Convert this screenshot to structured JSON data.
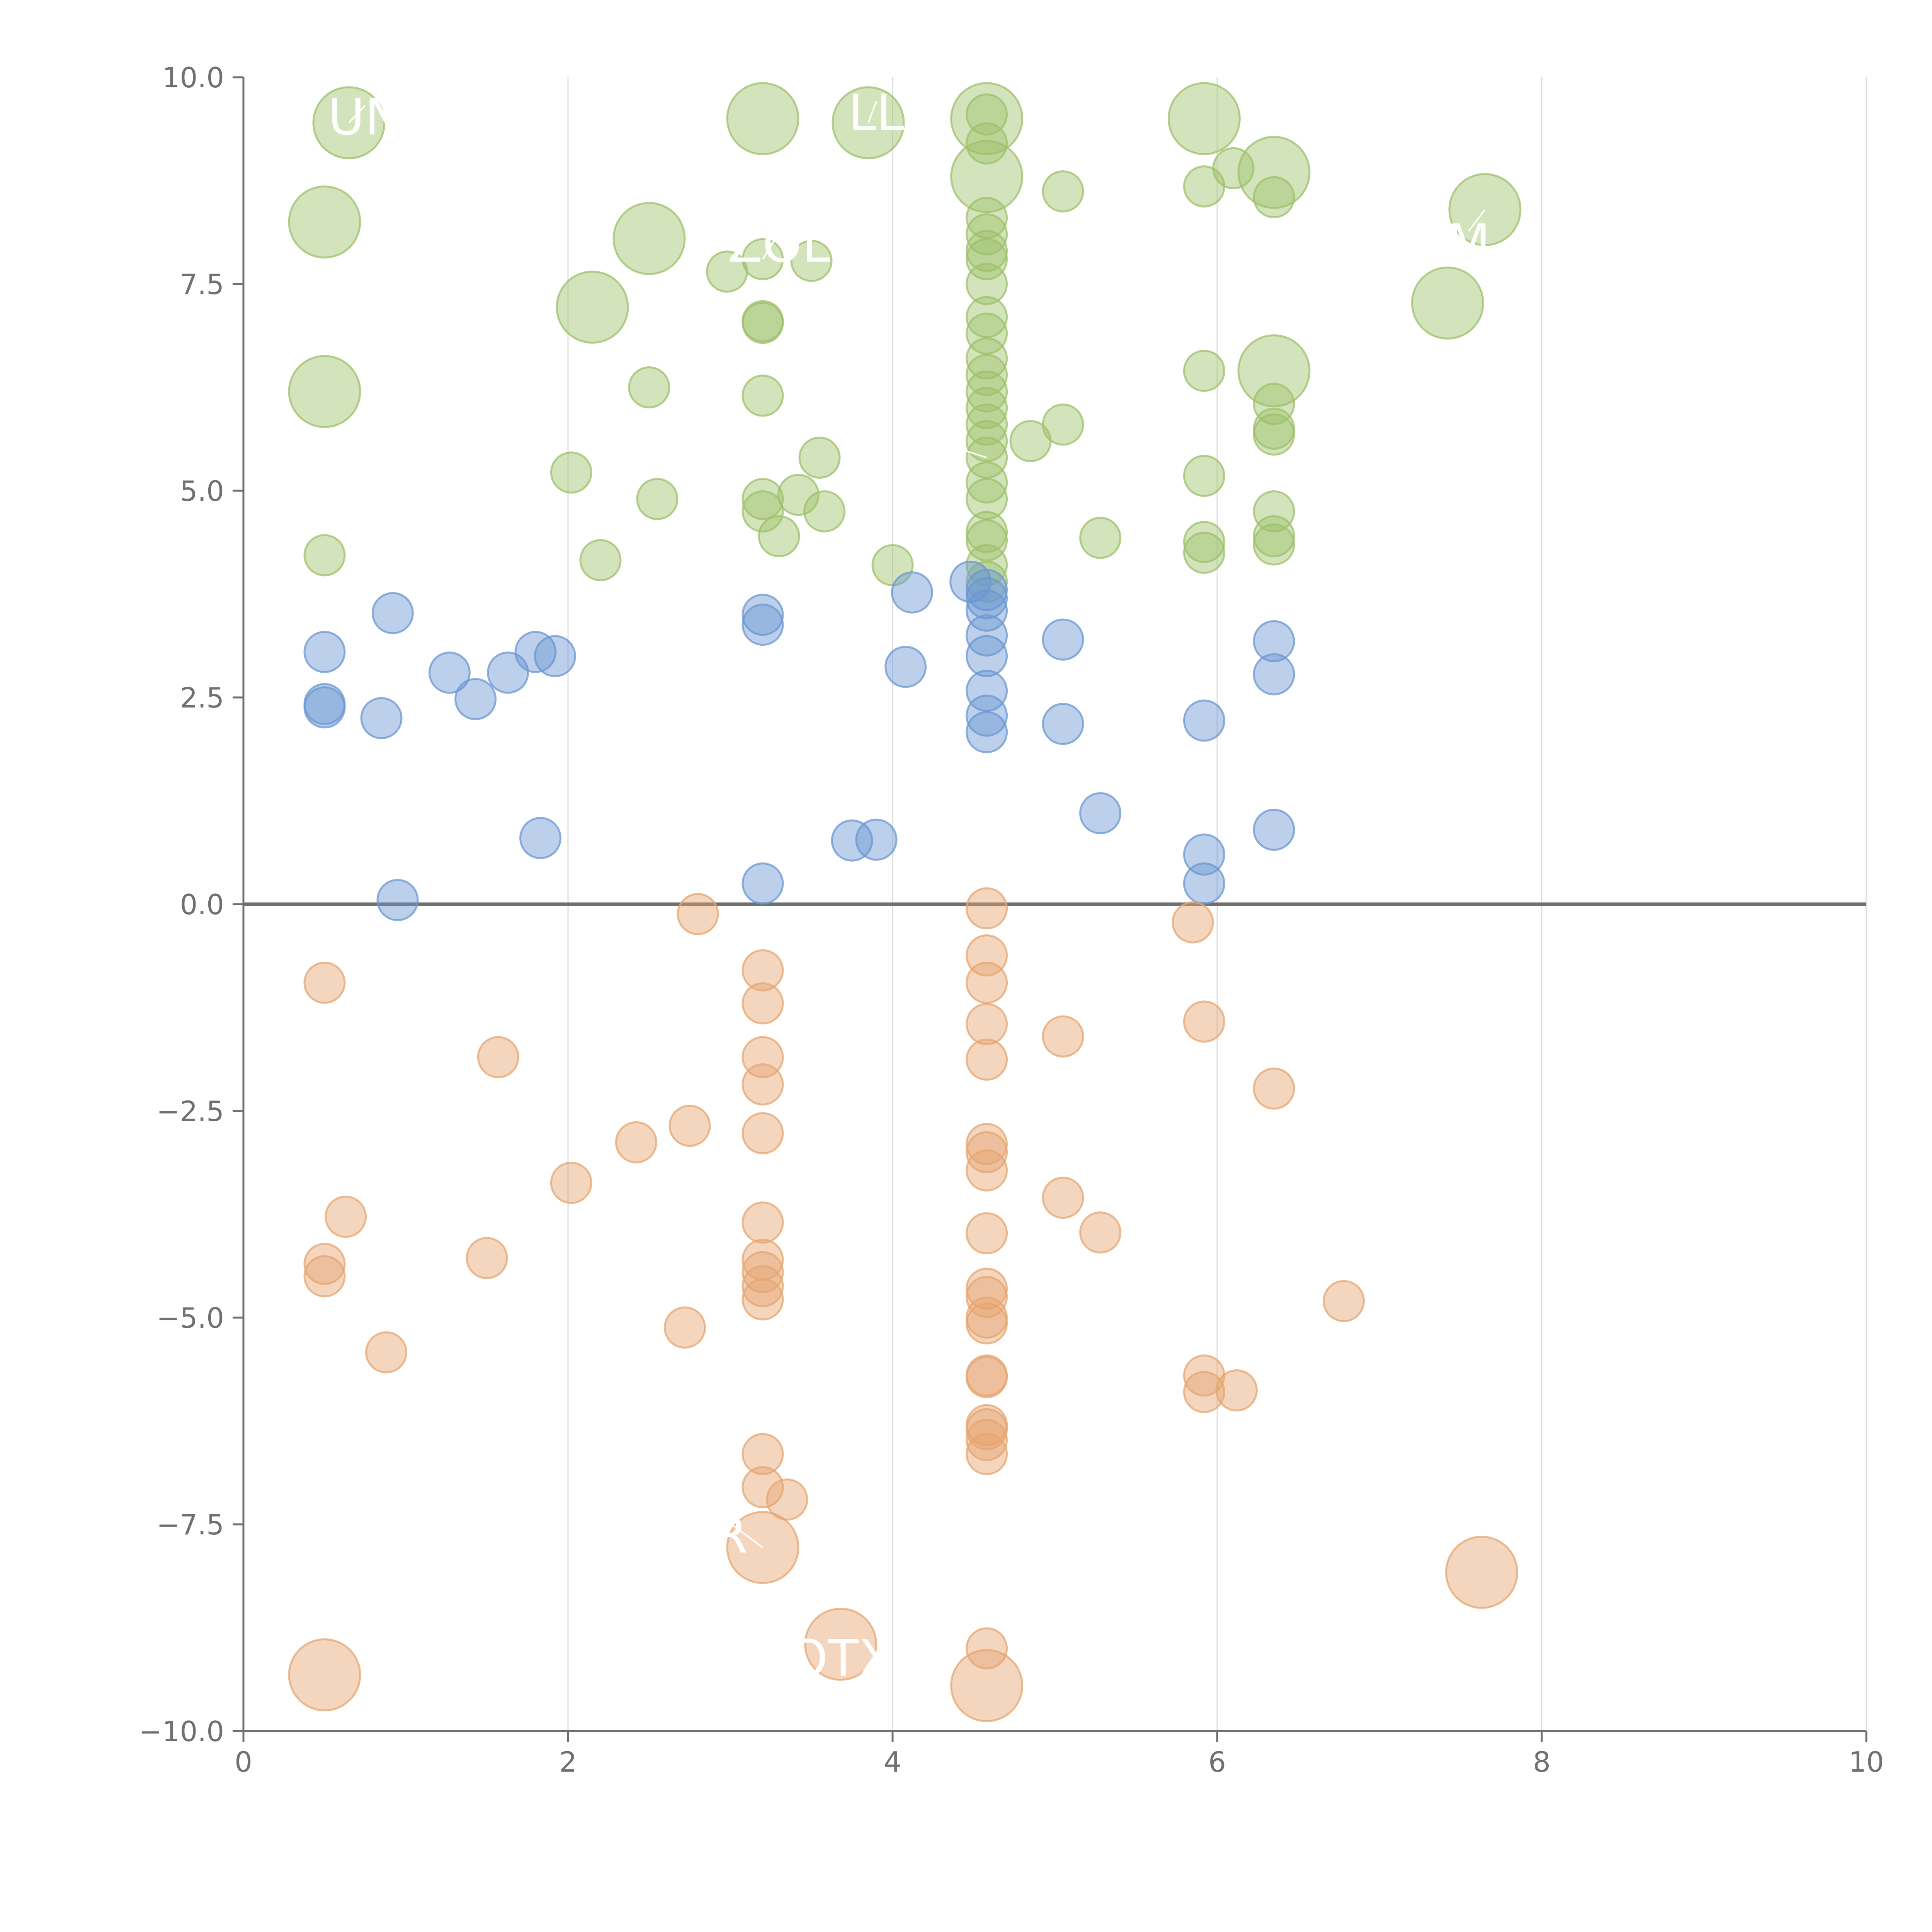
{
  "chart_data": {
    "type": "scatter",
    "title": "",
    "xlabel": "",
    "ylabel": "",
    "xlim": [
      0,
      10
    ],
    "ylim": [
      -10,
      10
    ],
    "x_ticks": [
      "0",
      "2",
      "4",
      "6",
      "8",
      "10"
    ],
    "y_ticks": [
      "10.0",
      "7.5",
      "5.0",
      "2.5",
      "0.0",
      "−2.5",
      "−5.0",
      "−7.5",
      "−10.0"
    ],
    "grid": "vertical",
    "zero_line": true,
    "colors": {
      "high": "#9dc06a",
      "mid": "#6b97d2",
      "low": "#e6a570",
      "axis": "#707070",
      "grid": "#dcdcdc"
    },
    "series": [
      {
        "color": "#9dc06a",
        "points": [
          [
            0.65,
            9.45,
            2
          ],
          [
            0.5,
            8.25,
            2
          ],
          [
            0.5,
            6.2,
            2
          ],
          [
            0.5,
            4.22,
            1
          ],
          [
            3.2,
            9.5,
            2
          ],
          [
            3.85,
            9.45,
            2
          ],
          [
            2.5,
            8.05,
            2
          ],
          [
            2.15,
            7.22,
            2
          ],
          [
            4.58,
            9.5,
            2
          ],
          [
            4.58,
            8.8,
            2
          ],
          [
            4.58,
            9.2,
            1
          ],
          [
            4.58,
            8.3,
            1
          ],
          [
            4.58,
            8.1,
            1
          ],
          [
            4.58,
            7.9,
            1
          ],
          [
            4.58,
            7.8,
            1
          ],
          [
            4.58,
            7.5,
            1
          ],
          [
            4.58,
            7.1,
            1
          ],
          [
            4.58,
            6.9,
            1
          ],
          [
            4.58,
            6.6,
            1
          ],
          [
            4.58,
            6.4,
            1
          ],
          [
            4.58,
            6.2,
            1
          ],
          [
            4.58,
            6.0,
            1
          ],
          [
            4.58,
            5.8,
            1
          ],
          [
            4.58,
            5.6,
            1
          ],
          [
            4.58,
            5.4,
            1
          ],
          [
            4.58,
            5.1,
            1
          ],
          [
            4.58,
            4.9,
            1
          ],
          [
            4.58,
            4.5,
            1
          ],
          [
            4.58,
            4.4,
            1
          ],
          [
            4.58,
            4.1,
            1
          ],
          [
            4.58,
            3.9,
            1
          ],
          [
            4.58,
            9.55,
            1
          ],
          [
            5.92,
            9.5,
            2
          ],
          [
            6.35,
            8.85,
            2
          ],
          [
            7.65,
            8.4,
            2
          ],
          [
            7.42,
            7.27,
            2
          ],
          [
            6.35,
            6.45,
            2
          ],
          [
            5.05,
            8.62,
            1
          ],
          [
            5.92,
            8.68,
            1
          ],
          [
            6.1,
            8.9,
            1
          ],
          [
            6.35,
            8.55,
            1
          ],
          [
            2.98,
            7.65,
            1
          ],
          [
            3.2,
            7.8,
            1
          ],
          [
            3.5,
            7.78,
            1
          ],
          [
            3.2,
            7.05,
            1
          ],
          [
            3.2,
            7.03,
            1
          ],
          [
            3.2,
            6.15,
            1
          ],
          [
            2.5,
            6.25,
            1
          ],
          [
            3.55,
            5.4,
            1
          ],
          [
            2.02,
            5.22,
            1
          ],
          [
            2.55,
            4.9,
            1
          ],
          [
            2.2,
            4.16,
            1
          ],
          [
            3.2,
            4.9,
            1
          ],
          [
            3.2,
            4.75,
            1
          ],
          [
            3.42,
            4.95,
            1
          ],
          [
            3.58,
            4.75,
            1
          ],
          [
            3.3,
            4.45,
            1
          ],
          [
            4.0,
            4.1,
            1
          ],
          [
            4.85,
            5.6,
            1
          ],
          [
            5.05,
            5.8,
            1
          ],
          [
            5.28,
            4.43,
            1
          ],
          [
            5.92,
            6.45,
            1
          ],
          [
            5.92,
            5.18,
            1
          ],
          [
            5.92,
            4.38,
            1
          ],
          [
            5.92,
            4.25,
            1
          ],
          [
            6.35,
            6.05,
            1
          ],
          [
            6.35,
            5.75,
            1
          ],
          [
            6.35,
            5.68,
            1
          ],
          [
            6.35,
            4.75,
            1
          ],
          [
            6.35,
            4.45,
            1
          ],
          [
            6.35,
            4.35,
            1
          ]
        ]
      },
      {
        "color": "#6b97d2",
        "points": [
          [
            0.5,
            3.05,
            1
          ],
          [
            0.5,
            2.42,
            1
          ],
          [
            0.5,
            2.38,
            1
          ],
          [
            0.85,
            2.25,
            1
          ],
          [
            0.92,
            3.52,
            1
          ],
          [
            0.95,
            0.05,
            1
          ],
          [
            1.27,
            2.8,
            1
          ],
          [
            1.43,
            2.48,
            1
          ],
          [
            1.63,
            2.8,
            1
          ],
          [
            1.8,
            3.05,
            1
          ],
          [
            1.92,
            3.0,
            1
          ],
          [
            1.83,
            0.8,
            1
          ],
          [
            3.2,
            3.5,
            1
          ],
          [
            3.2,
            3.38,
            1
          ],
          [
            3.2,
            0.25,
            1
          ],
          [
            3.75,
            0.77,
            1
          ],
          [
            3.9,
            0.78,
            1
          ],
          [
            4.08,
            2.87,
            1
          ],
          [
            4.12,
            3.77,
            1
          ],
          [
            4.48,
            3.9,
            1
          ],
          [
            4.58,
            3.8,
            1
          ],
          [
            4.58,
            3.7,
            1
          ],
          [
            4.58,
            3.55,
            1
          ],
          [
            4.58,
            3.25,
            1
          ],
          [
            4.58,
            3.0,
            1
          ],
          [
            4.58,
            2.58,
            1
          ],
          [
            4.58,
            2.28,
            1
          ],
          [
            4.58,
            2.08,
            1
          ],
          [
            5.05,
            3.2,
            1
          ],
          [
            5.05,
            2.18,
            1
          ],
          [
            5.28,
            1.1,
            1
          ],
          [
            5.92,
            2.22,
            1
          ],
          [
            5.92,
            0.6,
            1
          ],
          [
            5.92,
            0.25,
            1
          ],
          [
            6.35,
            3.18,
            1
          ],
          [
            6.35,
            2.78,
            1
          ],
          [
            6.35,
            0.9,
            1
          ]
        ]
      },
      {
        "color": "#e6a570",
        "points": [
          [
            0.5,
            -0.95,
            1
          ],
          [
            0.5,
            -4.35,
            1
          ],
          [
            0.5,
            -4.5,
            1
          ],
          [
            0.63,
            -3.78,
            1
          ],
          [
            0.88,
            -5.42,
            1
          ],
          [
            1.5,
            -4.28,
            1
          ],
          [
            1.57,
            -1.85,
            1
          ],
          [
            2.02,
            -3.37,
            1
          ],
          [
            2.42,
            -2.88,
            1
          ],
          [
            2.75,
            -2.68,
            1
          ],
          [
            2.72,
            -5.12,
            1
          ],
          [
            2.8,
            -0.12,
            1
          ],
          [
            3.2,
            -0.8,
            1
          ],
          [
            3.2,
            -1.2,
            1
          ],
          [
            3.2,
            -1.85,
            1
          ],
          [
            3.2,
            -2.18,
            1
          ],
          [
            3.2,
            -2.77,
            1
          ],
          [
            3.2,
            -3.85,
            1
          ],
          [
            3.2,
            -4.3,
            1
          ],
          [
            3.2,
            -4.45,
            1
          ],
          [
            3.2,
            -4.62,
            1
          ],
          [
            3.2,
            -4.78,
            1
          ],
          [
            3.2,
            -6.65,
            1
          ],
          [
            3.2,
            -7.05,
            1
          ],
          [
            3.35,
            -7.2,
            1
          ],
          [
            4.58,
            -0.05,
            1
          ],
          [
            4.58,
            -0.62,
            1
          ],
          [
            4.58,
            -0.95,
            1
          ],
          [
            4.58,
            -1.45,
            1
          ],
          [
            4.58,
            -1.88,
            1
          ],
          [
            4.58,
            -2.9,
            1
          ],
          [
            4.58,
            -3.0,
            1
          ],
          [
            4.58,
            -3.22,
            1
          ],
          [
            4.58,
            -3.98,
            1
          ],
          [
            4.58,
            -4.65,
            1
          ],
          [
            4.58,
            -4.75,
            1
          ],
          [
            4.58,
            -5.0,
            1
          ],
          [
            4.58,
            -5.07,
            1
          ],
          [
            4.58,
            -5.7,
            1
          ],
          [
            4.58,
            -5.72,
            1
          ],
          [
            4.58,
            -6.3,
            1
          ],
          [
            4.58,
            -6.35,
            1
          ],
          [
            4.58,
            -6.48,
            1
          ],
          [
            4.58,
            -6.65,
            1
          ],
          [
            4.58,
            -9.0,
            1
          ],
          [
            5.05,
            -1.6,
            1
          ],
          [
            5.05,
            -3.55,
            1
          ],
          [
            5.28,
            -3.97,
            1
          ],
          [
            5.85,
            -0.22,
            1
          ],
          [
            5.92,
            -1.42,
            1
          ],
          [
            5.92,
            -5.7,
            1
          ],
          [
            5.92,
            -5.9,
            1
          ],
          [
            6.12,
            -5.88,
            1
          ],
          [
            6.35,
            -2.23,
            1
          ],
          [
            6.78,
            -4.8,
            1
          ],
          [
            3.2,
            -7.78,
            2
          ],
          [
            3.68,
            -8.95,
            2
          ],
          [
            4.58,
            -9.45,
            2
          ],
          [
            0.5,
            -9.32,
            2
          ],
          [
            7.63,
            -8.08,
            2
          ]
        ]
      }
    ],
    "labels": [
      {
        "text": "UN",
        "x": 0.75,
        "y": 9.52,
        "ax": 0.65,
        "ay": 9.45
      },
      {
        "text": "LL",
        "x": 3.9,
        "y": 9.57,
        "ax": 3.85,
        "ay": 9.45
      },
      {
        "text": "ZOL",
        "x": 3.3,
        "y": 7.98,
        "ax": 3.2,
        "ay": 7.8
      },
      {
        "text": "A",
        "x": 4.28,
        "y": 5.45,
        "ax": 4.58,
        "ay": 5.4
      },
      {
        "text": "M",
        "x": 7.55,
        "y": 8.0,
        "ax": 7.65,
        "ay": 8.4
      },
      {
        "text": "R",
        "x": 3.0,
        "y": -7.63,
        "ax": 3.2,
        "ay": -7.78
      },
      {
        "text": "OTX",
        "x": 3.68,
        "y": -9.12,
        "ax": 3.68,
        "ay": -8.95
      }
    ]
  }
}
